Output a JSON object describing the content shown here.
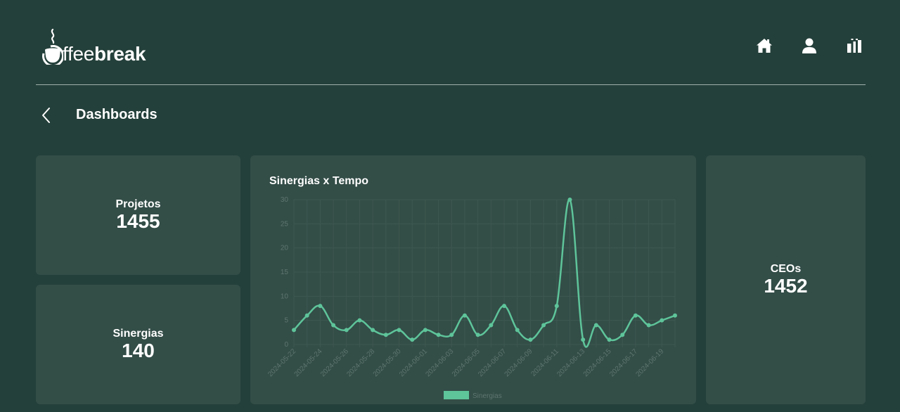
{
  "brand": {
    "light": "ffee",
    "bold": "break"
  },
  "nav": [
    {
      "name": "home-icon"
    },
    {
      "name": "user-icon"
    },
    {
      "name": "bar-chart-icon"
    }
  ],
  "page_title": "Dashboards",
  "stats": {
    "projetos": {
      "label": "Projetos",
      "value": "1455"
    },
    "sinergias": {
      "label": "Sinergias",
      "value": "140"
    },
    "ceos": {
      "label": "CEOs",
      "value": "1452"
    }
  },
  "colors": {
    "background": "#24403a",
    "card": "#334d47",
    "line": "#5ec49a",
    "grid": "#3e5851",
    "tick": "#5e776f"
  },
  "chart_data": {
    "type": "line",
    "title": "Sinergias x Tempo",
    "xlabel": "",
    "ylabel": "",
    "ylim": [
      0,
      30
    ],
    "yticks": [
      0,
      5,
      10,
      15,
      20,
      25,
      30
    ],
    "grid": true,
    "legend_position": "bottom",
    "x": [
      "2024-05-22",
      "2024-05-23",
      "2024-05-24",
      "2024-05-25",
      "2024-05-26",
      "2024-05-27",
      "2024-05-28",
      "2024-05-29",
      "2024-05-30",
      "2024-05-31",
      "2024-06-01",
      "2024-06-02",
      "2024-06-03",
      "2024-06-04",
      "2024-06-05",
      "2024-06-06",
      "2024-06-07",
      "2024-06-08",
      "2024-06-09",
      "2024-06-10",
      "2024-06-11",
      "2024-06-12",
      "2024-06-13",
      "2024-06-14",
      "2024-06-15",
      "2024-06-16",
      "2024-06-17",
      "2024-06-18",
      "2024-06-19",
      "2024-06-20"
    ],
    "x_tick_labels": [
      "2024-05-22",
      "",
      "2024-05-24",
      "",
      "2024-05-26",
      "",
      "2024-05-28",
      "",
      "2024-05-30",
      "",
      "2024-06-01",
      "",
      "2024-06-03",
      "",
      "2024-06-05",
      "",
      "2024-06-07",
      "",
      "2024-06-09",
      "",
      "2024-06-11",
      "",
      "2024-06-13",
      "",
      "2024-06-15",
      "",
      "2024-06-17",
      "",
      "2024-06-19",
      ""
    ],
    "series": [
      {
        "name": "Sinergias",
        "values": [
          3,
          6,
          8,
          4,
          3,
          5,
          3,
          2,
          3,
          1,
          3,
          2,
          2,
          6,
          2,
          4,
          8,
          3,
          1,
          4,
          8,
          30,
          1,
          4,
          1,
          2,
          6,
          4,
          5,
          6
        ]
      }
    ]
  }
}
